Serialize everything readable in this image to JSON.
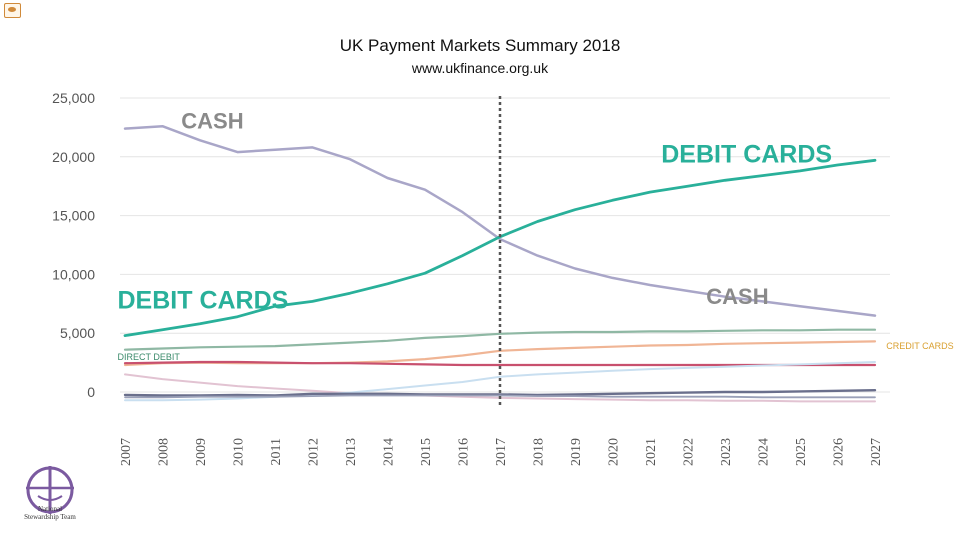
{
  "header": {
    "title": "UK Payment Markets Summary 2018",
    "subtitle": "www.ukfinance.org.uk"
  },
  "logo": {
    "line1": "National",
    "line2": "Stewardship Team"
  },
  "chart_data": {
    "type": "line",
    "x": [
      "2007",
      "2008",
      "2009",
      "2010",
      "2011",
      "2012",
      "2013",
      "2014",
      "2015",
      "2016",
      "2017",
      "2018",
      "2019",
      "2020",
      "2021",
      "2022",
      "2023",
      "2024",
      "2025",
      "2026",
      "2027"
    ],
    "yticks": [
      "25,000",
      "20,000",
      "15,000",
      "10,000",
      "5,000",
      "0"
    ],
    "ylim": [
      -1500,
      25000
    ],
    "grid": true,
    "forecast_divider_x": "2017",
    "series": [
      {
        "name": "CASH",
        "color": "#a9a6c8",
        "width": 2.5,
        "values": [
          22400,
          22600,
          21400,
          20400,
          20600,
          20800,
          19800,
          18200,
          17200,
          15300,
          13000,
          11600,
          10500,
          9700,
          9100,
          8600,
          8100,
          7700,
          7300,
          6900,
          6500
        ]
      },
      {
        "name": "DEBIT CARDS",
        "color": "#29b09a",
        "width": 2.8,
        "values": [
          4800,
          5300,
          5800,
          6400,
          7300,
          7700,
          8400,
          9200,
          10100,
          11600,
          13200,
          14500,
          15500,
          16300,
          17000,
          17500,
          18000,
          18400,
          18800,
          19300,
          19700
        ]
      },
      {
        "name": "DIRECT DEBIT",
        "color": "#8fb8a4",
        "width": 2.2,
        "values": [
          3600,
          3700,
          3800,
          3850,
          3900,
          4050,
          4200,
          4350,
          4600,
          4750,
          4950,
          5050,
          5100,
          5100,
          5150,
          5150,
          5200,
          5250,
          5250,
          5300,
          5300
        ]
      },
      {
        "name": "CREDIT CARDS",
        "color": "#f0b595",
        "width": 2.2,
        "values": [
          2300,
          2450,
          2500,
          2450,
          2450,
          2450,
          2500,
          2600,
          2800,
          3100,
          3500,
          3650,
          3750,
          3850,
          3950,
          4000,
          4100,
          4150,
          4200,
          4250,
          4300
        ]
      },
      {
        "name": "",
        "color": "#c8506e",
        "width": 2.2,
        "values": [
          2450,
          2500,
          2550,
          2550,
          2500,
          2450,
          2450,
          2400,
          2350,
          2300,
          2300,
          2300,
          2300,
          2300,
          2300,
          2300,
          2300,
          2300,
          2300,
          2300,
          2300
        ]
      },
      {
        "name": "",
        "color": "#e2c3d2",
        "width": 2,
        "values": [
          1500,
          1100,
          800,
          500,
          300,
          100,
          -100,
          -200,
          -300,
          -400,
          -500,
          -550,
          -600,
          -650,
          -700,
          -700,
          -750,
          -750,
          -800,
          -800,
          -800
        ]
      },
      {
        "name": "",
        "color": "#c9dff0",
        "width": 2,
        "values": [
          -700,
          -700,
          -650,
          -550,
          -400,
          -250,
          -50,
          250,
          550,
          850,
          1300,
          1500,
          1650,
          1800,
          1950,
          2050,
          2150,
          2250,
          2350,
          2450,
          2550
        ]
      },
      {
        "name": "",
        "color": "#6a6f8c",
        "width": 2.4,
        "values": [
          -250,
          -300,
          -300,
          -250,
          -300,
          -150,
          -150,
          -150,
          -200,
          -200,
          -200,
          -250,
          -200,
          -150,
          -100,
          -50,
          0,
          0,
          50,
          100,
          150
        ]
      },
      {
        "name": "",
        "color": "#9aa0b8",
        "width": 1.8,
        "values": [
          -450,
          -450,
          -400,
          -400,
          -400,
          -350,
          -300,
          -300,
          -300,
          -300,
          -300,
          -350,
          -350,
          -400,
          -400,
          -400,
          -400,
          -450,
          -450,
          -450,
          -450
        ]
      }
    ],
    "annotations": [
      {
        "text": "CASH",
        "x": "2008.5",
        "y": 22400,
        "color": "#8a8a8a",
        "size": 22
      },
      {
        "text": "DEBIT CARDS",
        "x": "2021.3",
        "y": 19500,
        "color": "#29b09a",
        "size": 25
      },
      {
        "text": "DEBIT CARDS",
        "x": "2006.8",
        "y": 7100,
        "color": "#29b09a",
        "size": 25
      },
      {
        "text": "CASH",
        "x": "2022.5",
        "y": 7500,
        "color": "#8a8a8a",
        "size": 22
      },
      {
        "text": "DIRECT DEBIT",
        "x": "2006.8",
        "y": 2700,
        "color": "#3a8a6a",
        "size": 9
      },
      {
        "text": "CREDIT CARDS",
        "x": "2027.3",
        "y": 3650,
        "color": "#d9a030",
        "size": 9
      }
    ]
  }
}
